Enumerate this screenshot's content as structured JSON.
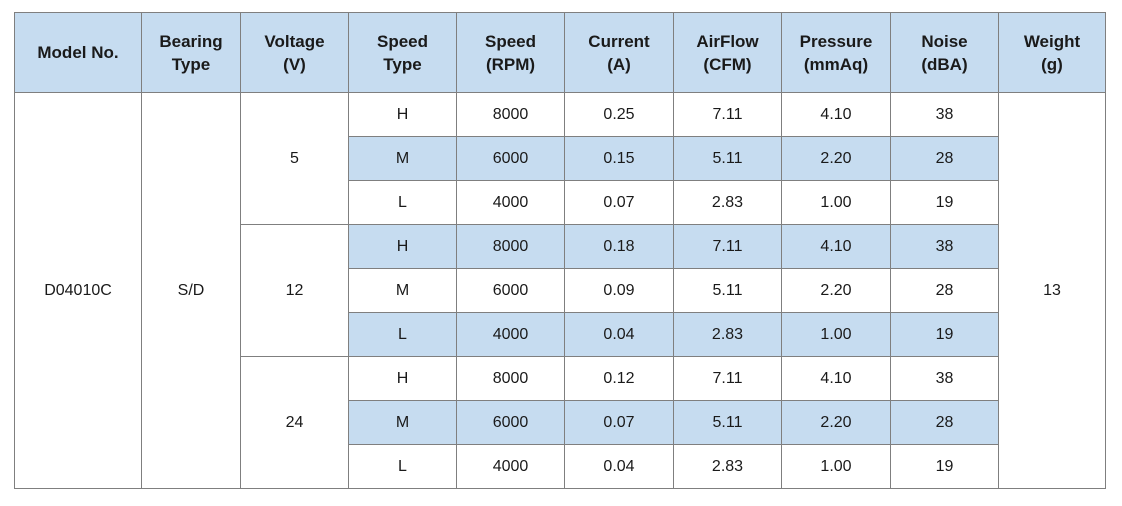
{
  "headers": [
    {
      "line1": "Model No.",
      "line2": ""
    },
    {
      "line1": "Bearing",
      "line2": "Type"
    },
    {
      "line1": "Voltage",
      "line2": "(V)"
    },
    {
      "line1": "Speed",
      "line2": "Type"
    },
    {
      "line1": "Speed",
      "line2": "(RPM)"
    },
    {
      "line1": "Current",
      "line2": "(A)"
    },
    {
      "line1": "AirFlow",
      "line2": "(CFM)"
    },
    {
      "line1": "Pressure",
      "line2": "(mmAq)"
    },
    {
      "line1": "Noise",
      "line2": "(dBA)"
    },
    {
      "line1": "Weight",
      "line2": "(g)"
    }
  ],
  "model": "D04010C",
  "bearing": "S/D",
  "weight": "13",
  "voltages": [
    "5",
    "12",
    "24"
  ],
  "rows": [
    {
      "speed_type": "H",
      "rpm": "8000",
      "current": "0.25",
      "airflow": "7.11",
      "pressure": "4.10",
      "noise": "38"
    },
    {
      "speed_type": "M",
      "rpm": "6000",
      "current": "0.15",
      "airflow": "5.11",
      "pressure": "2.20",
      "noise": "28"
    },
    {
      "speed_type": "L",
      "rpm": "4000",
      "current": "0.07",
      "airflow": "2.83",
      "pressure": "1.00",
      "noise": "19"
    },
    {
      "speed_type": "H",
      "rpm": "8000",
      "current": "0.18",
      "airflow": "7.11",
      "pressure": "4.10",
      "noise": "38"
    },
    {
      "speed_type": "M",
      "rpm": "6000",
      "current": "0.09",
      "airflow": "5.11",
      "pressure": "2.20",
      "noise": "28"
    },
    {
      "speed_type": "L",
      "rpm": "4000",
      "current": "0.04",
      "airflow": "2.83",
      "pressure": "1.00",
      "noise": "19"
    },
    {
      "speed_type": "H",
      "rpm": "8000",
      "current": "0.12",
      "airflow": "7.11",
      "pressure": "4.10",
      "noise": "38"
    },
    {
      "speed_type": "M",
      "rpm": "6000",
      "current": "0.07",
      "airflow": "5.11",
      "pressure": "2.20",
      "noise": "28"
    },
    {
      "speed_type": "L",
      "rpm": "4000",
      "current": "0.04",
      "airflow": "2.83",
      "pressure": "1.00",
      "noise": "19"
    }
  ],
  "colors": {
    "header_fill": "#c6dcf0",
    "row_shade": "#c6dcf0",
    "border": "#7f7f7f"
  }
}
